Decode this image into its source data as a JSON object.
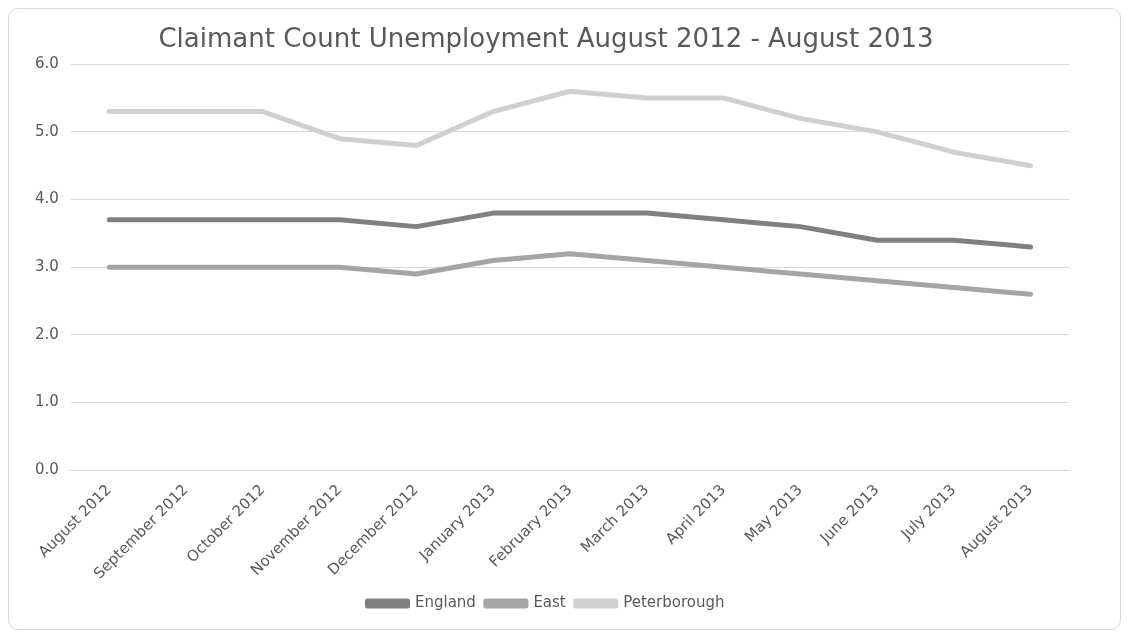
{
  "chart_data": {
    "type": "line",
    "title": "Claimant Count Unemployment August 2012 - August 2013",
    "categories": [
      "August 2012",
      "September 2012",
      "October 2012",
      "November 2012",
      "December 2012",
      "January 2013",
      "February 2013",
      "March 2013",
      "April 2013",
      "May 2013",
      "June 2013",
      "July 2013",
      "August 2013"
    ],
    "series": [
      {
        "name": "England",
        "color": "#808080",
        "values": [
          3.7,
          3.7,
          3.7,
          3.7,
          3.6,
          3.8,
          3.8,
          3.8,
          3.7,
          3.6,
          3.4,
          3.4,
          3.3
        ]
      },
      {
        "name": "East",
        "color": "#a5a5a5",
        "values": [
          3.0,
          3.0,
          3.0,
          3.0,
          2.9,
          3.1,
          3.2,
          3.1,
          3.0,
          2.9,
          2.8,
          2.7,
          2.6
        ]
      },
      {
        "name": "Peterborough",
        "color": "#d0d0d0",
        "values": [
          5.3,
          5.3,
          5.3,
          4.9,
          4.8,
          5.3,
          5.6,
          5.5,
          5.5,
          5.2,
          5.0,
          4.7,
          4.5
        ]
      }
    ],
    "ylim": [
      0,
      6
    ],
    "yticks": [
      {
        "value": 0,
        "label": "0.0"
      },
      {
        "value": 1,
        "label": "1.0"
      },
      {
        "value": 2,
        "label": "2.0"
      },
      {
        "value": 3,
        "label": "3.0"
      },
      {
        "value": 4,
        "label": "4.0"
      },
      {
        "value": 5,
        "label": "5.0"
      },
      {
        "value": 6,
        "label": "6.0"
      }
    ],
    "grid": "y",
    "legend": "bottom",
    "marker": "none",
    "line_style": "solid"
  }
}
